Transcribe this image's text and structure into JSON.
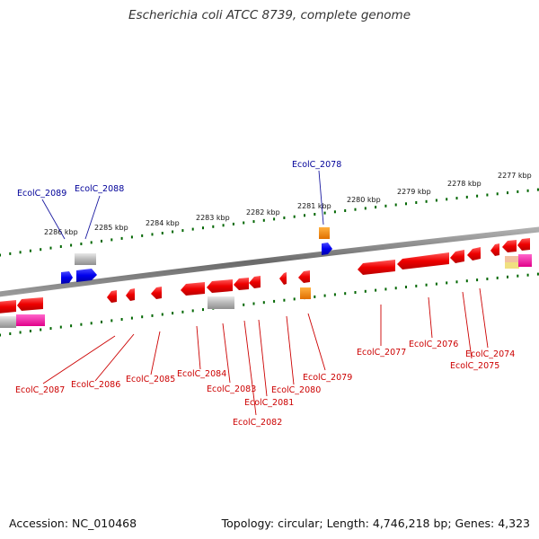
{
  "title": "Escherichia coli ATCC 8739, complete genome",
  "footer": {
    "accession": "Accession: NC_010468",
    "summary": "Topology: circular; Length: 4,746,218 bp; Genes: 4,323"
  },
  "colors": {
    "forward_gene": "#0000ee",
    "reverse_gene": "#ee0000",
    "rna": "#ff8800",
    "backbone": "#888888",
    "tick": "#006600",
    "forward_label": "#000099",
    "reverse_label": "#cc0000"
  },
  "scale_labels": [
    "2286 kbp",
    "2285 kbp",
    "2284 kbp",
    "2283 kbp",
    "2282 kbp",
    "2281 kbp",
    "2280 kbp",
    "2279 kbp",
    "2278 kbp",
    "2277 kbp"
  ],
  "forward_labels": [
    "EcolC_2089",
    "EcolC_2088",
    "EcolC_2078"
  ],
  "reverse_labels": [
    "EcolC_2087",
    "EcolC_2086",
    "EcolC_2085",
    "EcolC_2084",
    "EcolC_2083",
    "EcolC_2082",
    "EcolC_2081",
    "EcolC_2080",
    "EcolC_2079",
    "EcolC_2077",
    "EcolC_2076",
    "EcolC_2075",
    "EcolC_2074"
  ]
}
